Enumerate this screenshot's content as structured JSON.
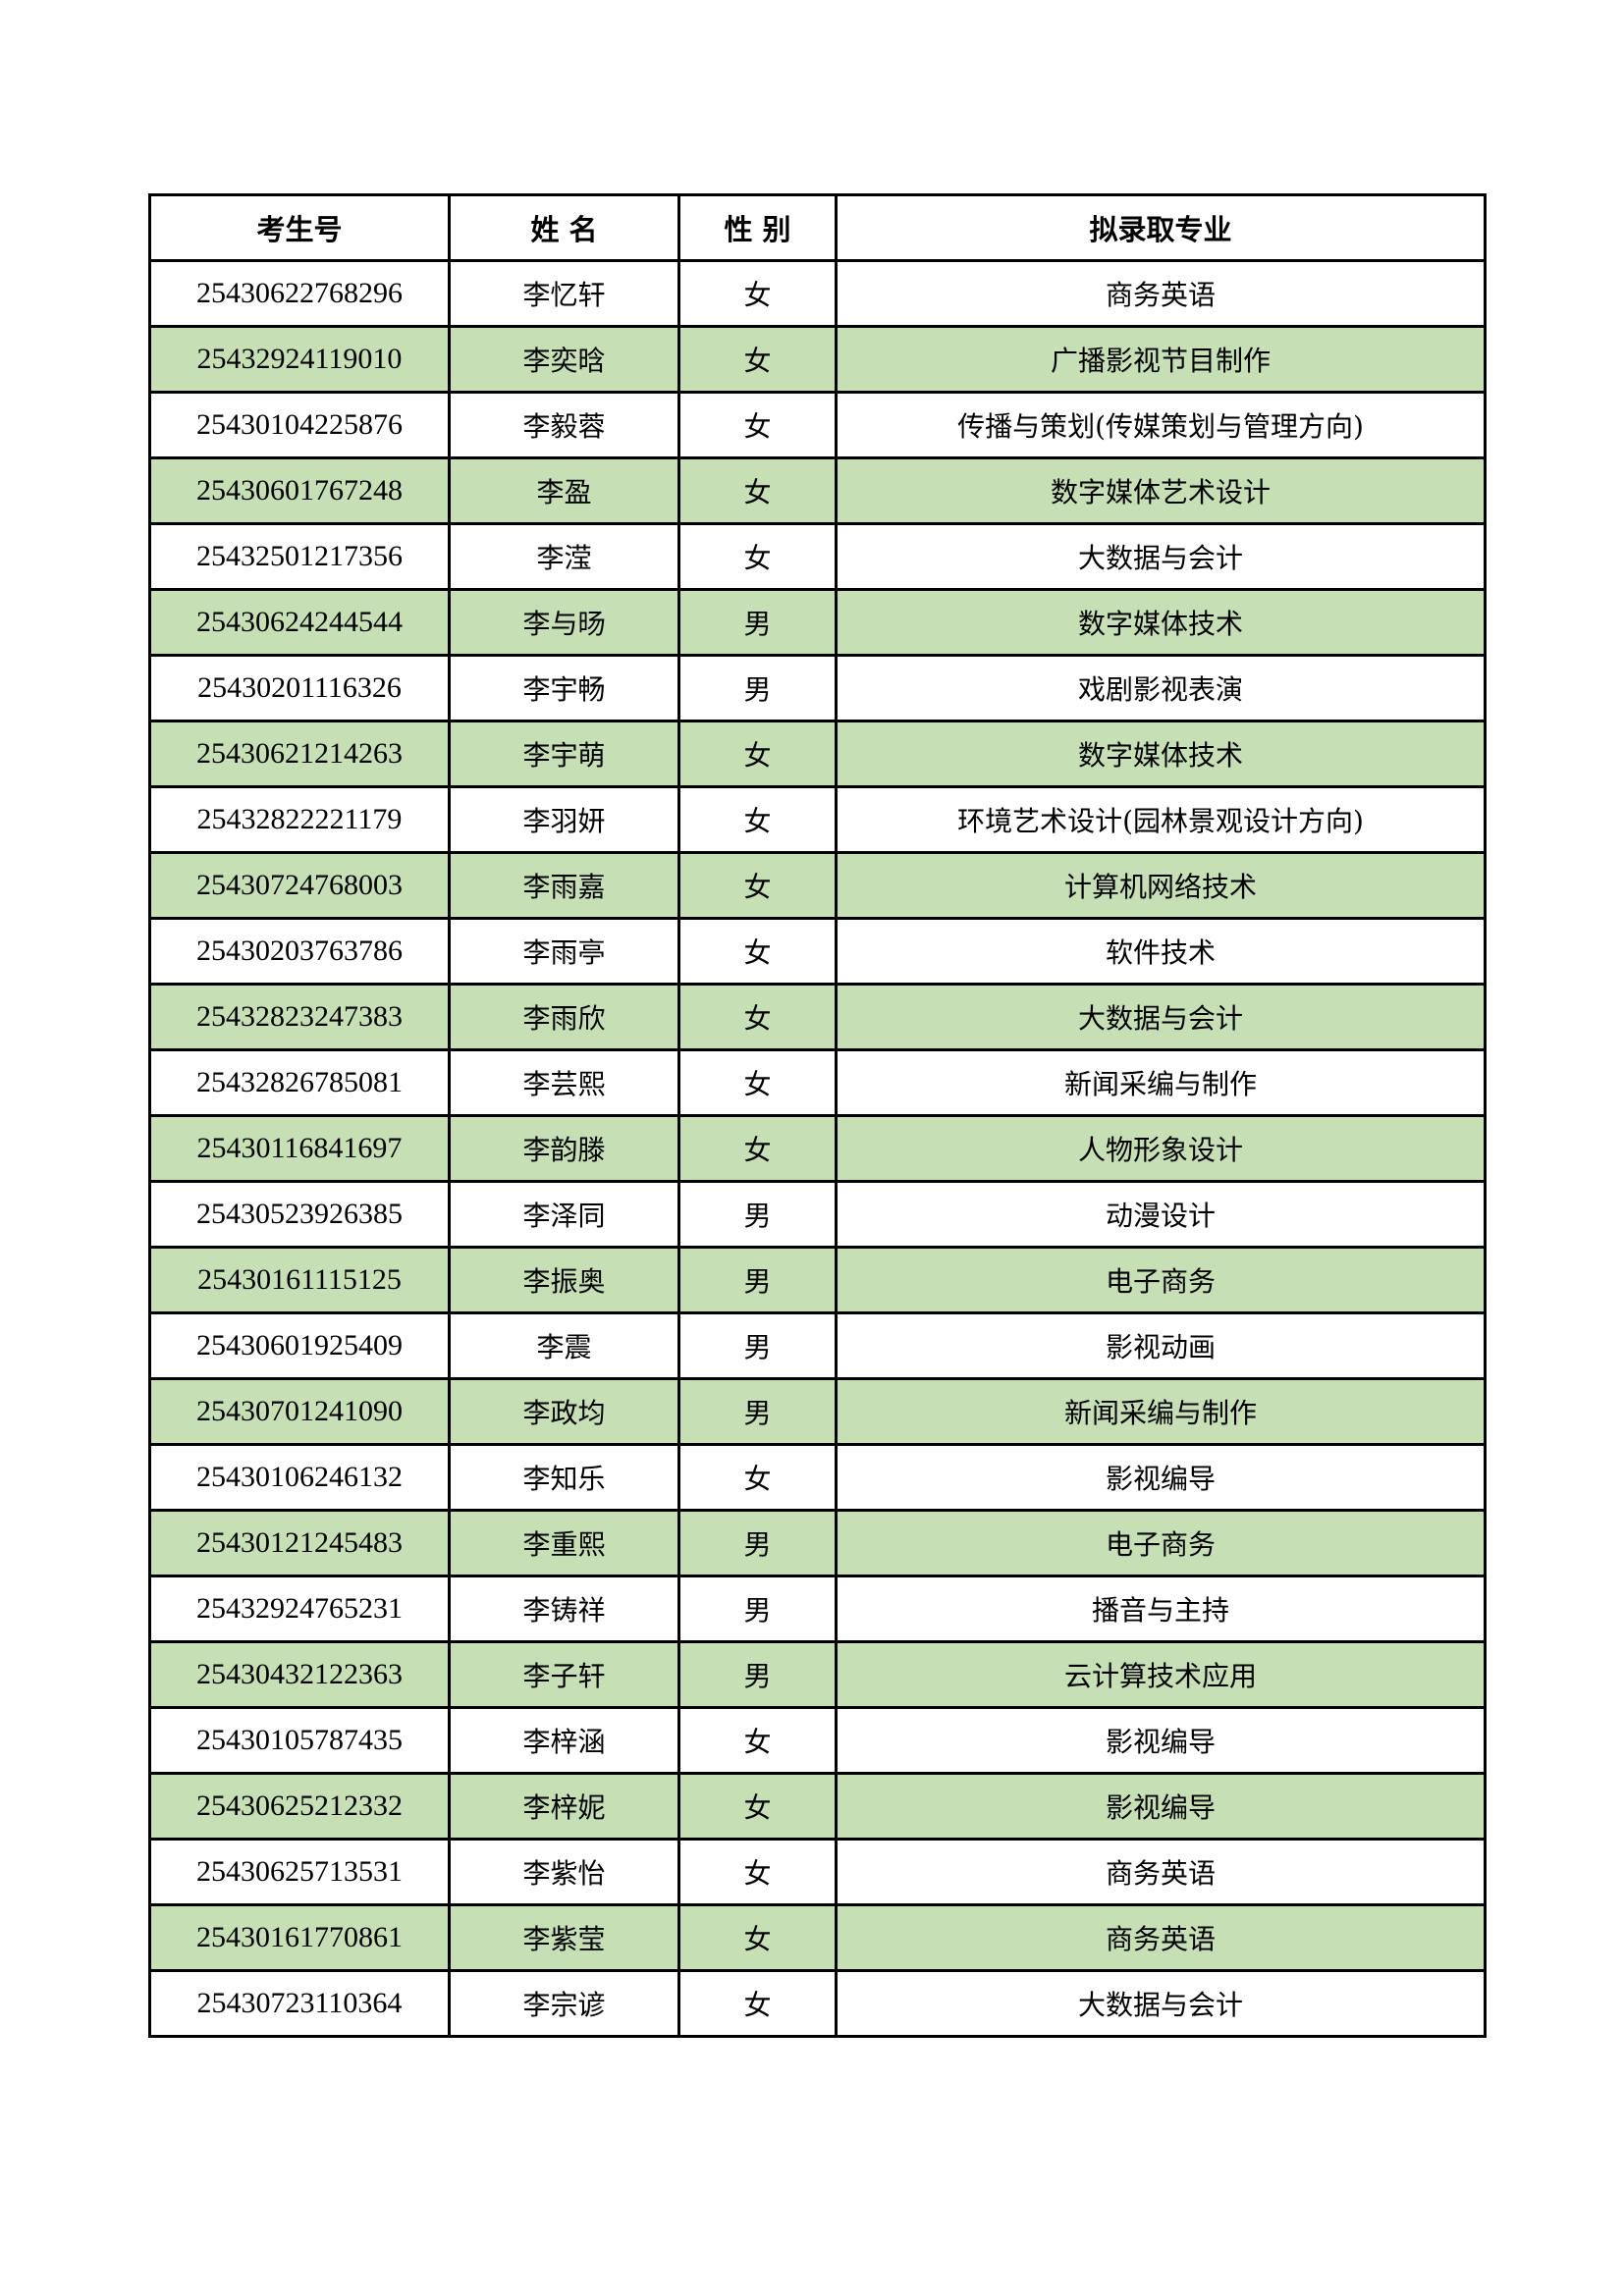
{
  "headers": [
    "考生号",
    "姓 名",
    "性 别",
    "拟录取专业"
  ],
  "row_highlight_color": "#c6dfb4",
  "rows": [
    [
      "25430622768296",
      "李忆轩",
      "女",
      "商务英语"
    ],
    [
      "25432924119010",
      "李奕晗",
      "女",
      "广播影视节目制作"
    ],
    [
      "25430104225876",
      "李毅蓉",
      "女",
      "传播与策划(传媒策划与管理方向)"
    ],
    [
      "25430601767248",
      "李盈",
      "女",
      "数字媒体艺术设计"
    ],
    [
      "25432501217356",
      "李滢",
      "女",
      "大数据与会计"
    ],
    [
      "25430624244544",
      "李与旸",
      "男",
      "数字媒体技术"
    ],
    [
      "25430201116326",
      "李宇畅",
      "男",
      "戏剧影视表演"
    ],
    [
      "25430621214263",
      "李宇萌",
      "女",
      "数字媒体技术"
    ],
    [
      "25432822221179",
      "李羽妍",
      "女",
      "环境艺术设计(园林景观设计方向)"
    ],
    [
      "25430724768003",
      "李雨嘉",
      "女",
      "计算机网络技术"
    ],
    [
      "25430203763786",
      "李雨亭",
      "女",
      "软件技术"
    ],
    [
      "25432823247383",
      "李雨欣",
      "女",
      "大数据与会计"
    ],
    [
      "25432826785081",
      "李芸熙",
      "女",
      "新闻采编与制作"
    ],
    [
      "25430116841697",
      "李韵滕",
      "女",
      "人物形象设计"
    ],
    [
      "25430523926385",
      "李泽同",
      "男",
      "动漫设计"
    ],
    [
      "25430161115125",
      "李振奥",
      "男",
      "电子商务"
    ],
    [
      "25430601925409",
      "李震",
      "男",
      "影视动画"
    ],
    [
      "25430701241090",
      "李政均",
      "男",
      "新闻采编与制作"
    ],
    [
      "25430106246132",
      "李知乐",
      "女",
      "影视编导"
    ],
    [
      "25430121245483",
      "李重熙",
      "男",
      "电子商务"
    ],
    [
      "25432924765231",
      "李铸祥",
      "男",
      "播音与主持"
    ],
    [
      "25430432122363",
      "李子轩",
      "男",
      "云计算技术应用"
    ],
    [
      "25430105787435",
      "李梓涵",
      "女",
      "影视编导"
    ],
    [
      "25430625212332",
      "李梓妮",
      "女",
      "影视编导"
    ],
    [
      "25430625713531",
      "李紫怡",
      "女",
      "商务英语"
    ],
    [
      "25430161770861",
      "李紫莹",
      "女",
      "商务英语"
    ],
    [
      "25430723110364",
      "李宗谚",
      "女",
      "大数据与会计"
    ]
  ]
}
